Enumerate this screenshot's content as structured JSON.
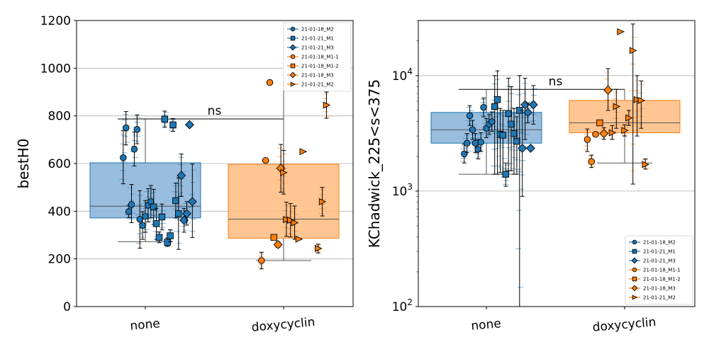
{
  "colors": {
    "none": "#1f77b4",
    "doxycyclin": "#ff7f0e",
    "none_box": "#8db6da",
    "dox_box": "#ffbf86"
  },
  "chart_data": [
    {
      "type": "box",
      "ylabel": "bestH0",
      "yscale": "linear",
      "ylim": [
        0,
        1200
      ],
      "yticks": [
        0,
        200,
        400,
        600,
        800,
        1000,
        1200
      ],
      "ytick_labels": [
        "0",
        "200",
        "400",
        "600",
        "800",
        "1000",
        "1200"
      ],
      "categories": [
        "none",
        "doxycyclin"
      ],
      "boxes": [
        {
          "category": "none",
          "q1": 372,
          "median": 421,
          "q3": 603,
          "whisker_low": 272,
          "whisker_high": 787
        },
        {
          "category": "doxycyclin",
          "q1": 287,
          "median": 367,
          "q3": 597,
          "whisker_low": 193,
          "whisker_high": 943
        }
      ],
      "significance": {
        "label": "ns",
        "y": 787
      },
      "legend_position": "top-right",
      "series": [
        {
          "name": "21-01-18_M2",
          "group": "none",
          "marker": "o",
          "points": [
            {
              "x": -0.16,
              "y": 625,
              "lo": 515,
              "hi": 738
            },
            {
              "x": -0.14,
              "y": 750,
              "lo": 678,
              "hi": 818
            },
            {
              "x": -0.12,
              "y": 398,
              "lo": 372,
              "hi": 425
            },
            {
              "x": -0.1,
              "y": 428,
              "lo": 352,
              "hi": 512
            },
            {
              "x": -0.08,
              "y": 660,
              "lo": 590,
              "hi": 732
            },
            {
              "x": -0.06,
              "y": 743,
              "lo": 683,
              "hi": 804
            },
            {
              "x": -0.04,
              "y": 366,
              "lo": 245,
              "hi": 486
            },
            {
              "x": -0.02,
              "y": 340,
              "lo": 282,
              "hi": 398
            },
            {
              "x": 0.0,
              "y": 378,
              "lo": 312,
              "hi": 445
            },
            {
              "x": 0.02,
              "y": 425,
              "lo": 355,
              "hi": 495
            },
            {
              "x": 0.04,
              "y": 440,
              "lo": 372,
              "hi": 508
            }
          ]
        },
        {
          "name": "21-01-21_M1",
          "group": "none",
          "marker": "s",
          "points": [
            {
              "x": 0.06,
              "y": 418,
              "lo": 345,
              "hi": 492
            },
            {
              "x": 0.08,
              "y": 348,
              "lo": 282,
              "hi": 412
            },
            {
              "x": 0.1,
              "y": 290,
              "lo": 268,
              "hi": 313
            },
            {
              "x": 0.12,
              "y": 376,
              "lo": 322,
              "hi": 430
            },
            {
              "x": 0.14,
              "y": 786,
              "lo": 752,
              "hi": 820
            },
            {
              "x": 0.16,
              "y": 270,
              "lo": 252,
              "hi": 288
            },
            {
              "x": 0.18,
              "y": 297,
              "lo": 272,
              "hi": 322
            },
            {
              "x": 0.2,
              "y": 762,
              "lo": 735,
              "hi": 789
            },
            {
              "x": 0.22,
              "y": 444,
              "lo": 372,
              "hi": 518
            },
            {
              "x": 0.24,
              "y": 390,
              "lo": 240,
              "hi": 540
            }
          ]
        },
        {
          "name": "21-01-21_M3",
          "group": "none",
          "marker": "D",
          "points": [
            {
              "x": 0.26,
              "y": 550,
              "lo": 462,
              "hi": 640
            },
            {
              "x": 0.28,
              "y": 362,
              "lo": 312,
              "hi": 412
            },
            {
              "x": 0.3,
              "y": 390,
              "lo": 342,
              "hi": 440
            },
            {
              "x": 0.32,
              "y": 763,
              "lo": 763,
              "hi": 763
            },
            {
              "x": 0.34,
              "y": 440,
              "lo": 290,
              "hi": 598
            }
          ]
        },
        {
          "name": "21-01-18_M1-1",
          "group": "doxycyclin",
          "marker": "o",
          "points": [
            {
              "x": 0.84,
              "y": 193,
              "lo": 158,
              "hi": 228
            },
            {
              "x": 0.87,
              "y": 613,
              "lo": 613,
              "hi": 613
            },
            {
              "x": 0.9,
              "y": 940,
              "lo": 940,
              "hi": 940
            }
          ]
        },
        {
          "name": "21-01-18_M1-2",
          "group": "doxycyclin",
          "marker": "s",
          "points": [
            {
              "x": 0.93,
              "y": 290,
              "lo": 290,
              "hi": 290
            }
          ]
        },
        {
          "name": "21-01-18_M3",
          "group": "doxycyclin",
          "marker": "D",
          "points": [
            {
              "x": 0.96,
              "y": 260,
              "lo": 248,
              "hi": 272
            },
            {
              "x": 0.98,
              "y": 580,
              "lo": 480,
              "hi": 680
            }
          ]
        },
        {
          "name": "21-01-21_M2",
          "group": "doxycyclin",
          "marker": ">",
          "points": [
            {
              "x": 1.0,
              "y": 562,
              "lo": 472,
              "hi": 655
            },
            {
              "x": 1.02,
              "y": 365,
              "lo": 295,
              "hi": 438
            },
            {
              "x": 1.05,
              "y": 362,
              "lo": 292,
              "hi": 432
            },
            {
              "x": 1.08,
              "y": 352,
              "lo": 282,
              "hi": 422
            },
            {
              "x": 1.11,
              "y": 283,
              "lo": 283,
              "hi": 283
            },
            {
              "x": 1.14,
              "y": 650,
              "lo": 650,
              "hi": 650
            },
            {
              "x": 1.25,
              "y": 244,
              "lo": 225,
              "hi": 262
            },
            {
              "x": 1.28,
              "y": 440,
              "lo": 380,
              "hi": 500
            },
            {
              "x": 1.31,
              "y": 845,
              "lo": 790,
              "hi": 900
            }
          ]
        }
      ]
    },
    {
      "type": "box",
      "ylabel": "KChadwick_225<s<375",
      "yscale": "log",
      "ylim": [
        100,
        30000
      ],
      "yticks": [
        100,
        1000,
        10000
      ],
      "ytick_labels": [
        "10",
        "10",
        "10"
      ],
      "ytick_exponents": [
        "2",
        "3",
        "4"
      ],
      "categories": [
        "none",
        "doxycyclin"
      ],
      "boxes": [
        {
          "category": "none",
          "q1": 2600,
          "median": 3400,
          "q3": 4800,
          "whisker_low": 1400,
          "whisker_high": 7600
        },
        {
          "category": "doxycyclin",
          "q1": 3200,
          "median": 3900,
          "q3": 6100,
          "whisker_low": 1750,
          "whisker_high": 7600
        }
      ],
      "significance": {
        "label": "ns",
        "y": 7600
      },
      "legend_position": "bottom-right",
      "series": [
        {
          "name": "21-01-18_M2",
          "group": "none",
          "marker": "o",
          "points": [
            {
              "x": -0.16,
              "y": 2100,
              "lo": 1750,
              "hi": 2550
            },
            {
              "x": -0.14,
              "y": 2600,
              "lo": 2150,
              "hi": 3150
            },
            {
              "x": -0.12,
              "y": 4500,
              "lo": 3700,
              "hi": 5500
            },
            {
              "x": -0.1,
              "y": 3400,
              "lo": 2800,
              "hi": 4100
            },
            {
              "x": -0.08,
              "y": 2600,
              "lo": 2150,
              "hi": 3150
            },
            {
              "x": -0.06,
              "y": 2300,
              "lo": 1900,
              "hi": 2800
            },
            {
              "x": -0.04,
              "y": 2650,
              "lo": 2200,
              "hi": 3200
            },
            {
              "x": -0.02,
              "y": 5300,
              "lo": 4400,
              "hi": 6400
            },
            {
              "x": 0.0,
              "y": 3500,
              "lo": 2900,
              "hi": 4250
            },
            {
              "x": 0.02,
              "y": 3800,
              "lo": 3100,
              "hi": 4600
            },
            {
              "x": 0.04,
              "y": 4000,
              "lo": 3300,
              "hi": 4850
            }
          ]
        },
        {
          "name": "21-01-21_M1",
          "group": "none",
          "marker": "s",
          "points": [
            {
              "x": 0.06,
              "y": 5400,
              "lo": 1400,
              "hi": 10000
            },
            {
              "x": 0.08,
              "y": 6200,
              "lo": 1400,
              "hi": 11000
            },
            {
              "x": 0.1,
              "y": 3100,
              "lo": 1450,
              "hi": 5200
            },
            {
              "x": 0.12,
              "y": 3050,
              "lo": 1400,
              "hi": 5000
            },
            {
              "x": 0.14,
              "y": 1400,
              "lo": 1100,
              "hi": 1750
            },
            {
              "x": 0.16,
              "y": 4700,
              "lo": 1500,
              "hi": 9500
            },
            {
              "x": 0.18,
              "y": 3800,
              "lo": 1500,
              "hi": 8000
            },
            {
              "x": 0.2,
              "y": 3150,
              "lo": 1400,
              "hi": 5200
            },
            {
              "x": 0.22,
              "y": 2700,
              "lo": 1400,
              "hi": 4400
            },
            {
              "x": 0.24,
              "y": 5000,
              "lo": 100,
              "hi": 10000
            }
          ]
        },
        {
          "name": "21-01-21_M3",
          "group": "none",
          "marker": "D",
          "points": [
            {
              "x": 0.26,
              "y": 2350,
              "lo": 900,
              "hi": 5000
            },
            {
              "x": 0.28,
              "y": 5600,
              "lo": 2800,
              "hi": 9500
            },
            {
              "x": 0.3,
              "y": 4800,
              "lo": 3900,
              "hi": 5800
            },
            {
              "x": 0.32,
              "y": 2350,
              "lo": 2350,
              "hi": 2350
            },
            {
              "x": 0.34,
              "y": 5600,
              "lo": 3800,
              "hi": 8200
            }
          ]
        },
        {
          "name": "21-01-18_M1-1",
          "group": "doxycyclin",
          "marker": "o",
          "points": [
            {
              "x": 0.73,
              "y": 2800,
              "lo": 2200,
              "hi": 3450
            },
            {
              "x": 0.76,
              "y": 1800,
              "lo": 1600,
              "hi": 2050
            },
            {
              "x": 0.79,
              "y": 3100,
              "lo": 3100,
              "hi": 3100
            }
          ]
        },
        {
          "name": "21-01-18_M1-2",
          "group": "doxycyclin",
          "marker": "s",
          "points": [
            {
              "x": 0.82,
              "y": 3900,
              "lo": 3900,
              "hi": 3900
            }
          ]
        },
        {
          "name": "21-01-18_M3",
          "group": "doxycyclin",
          "marker": "D",
          "points": [
            {
              "x": 0.85,
              "y": 3150,
              "lo": 2800,
              "hi": 3550
            },
            {
              "x": 0.88,
              "y": 7500,
              "lo": 5000,
              "hi": 11500
            }
          ]
        },
        {
          "name": "21-01-21_M2",
          "group": "doxycyclin",
          "marker": ">",
          "points": [
            {
              "x": 0.91,
              "y": 3200,
              "lo": 2800,
              "hi": 3700
            },
            {
              "x": 0.94,
              "y": 5400,
              "lo": 3500,
              "hi": 7600
            },
            {
              "x": 0.97,
              "y": 24000,
              "lo": 24000,
              "hi": 24000
            },
            {
              "x": 1.0,
              "y": 3350,
              "lo": 3000,
              "hi": 3750
            },
            {
              "x": 1.03,
              "y": 4300,
              "lo": 3700,
              "hi": 5000
            },
            {
              "x": 1.06,
              "y": 16500,
              "lo": 1150,
              "hi": 28000
            },
            {
              "x": 1.09,
              "y": 6200,
              "lo": 3000,
              "hi": 10000
            },
            {
              "x": 1.12,
              "y": 6100,
              "lo": 3500,
              "hi": 9000
            },
            {
              "x": 1.15,
              "y": 1700,
              "lo": 1550,
              "hi": 1900
            }
          ]
        }
      ]
    }
  ]
}
